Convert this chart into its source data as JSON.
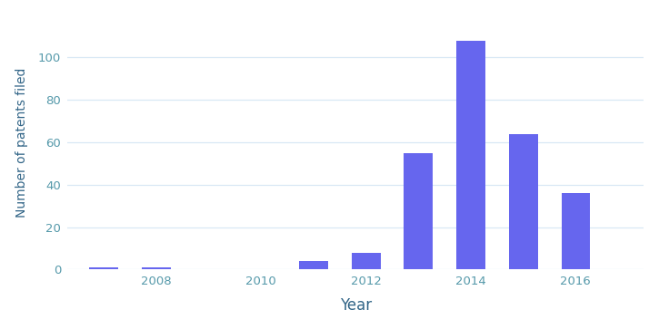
{
  "years": [
    2007,
    2008,
    2009,
    2010,
    2011,
    2012,
    2013,
    2014,
    2015,
    2016
  ],
  "values": [
    1,
    1,
    0,
    0,
    4,
    8,
    55,
    108,
    64,
    36
  ],
  "bar_color": "#6666ee",
  "xlabel": "Year",
  "ylabel": "Number of patents filed",
  "yticks": [
    0,
    20,
    40,
    60,
    80,
    100
  ],
  "xticks": [
    2008,
    2010,
    2012,
    2014,
    2016
  ],
  "ylim": [
    0,
    120
  ],
  "xlim": [
    2006.3,
    2017.3
  ],
  "background_color": "#ffffff",
  "grid_color": "#d8e8f5",
  "tick_color": "#5599aa",
  "label_color": "#336688",
  "bar_width": 0.55,
  "xlabel_fontsize": 12,
  "ylabel_fontsize": 10,
  "tick_fontsize": 9.5
}
